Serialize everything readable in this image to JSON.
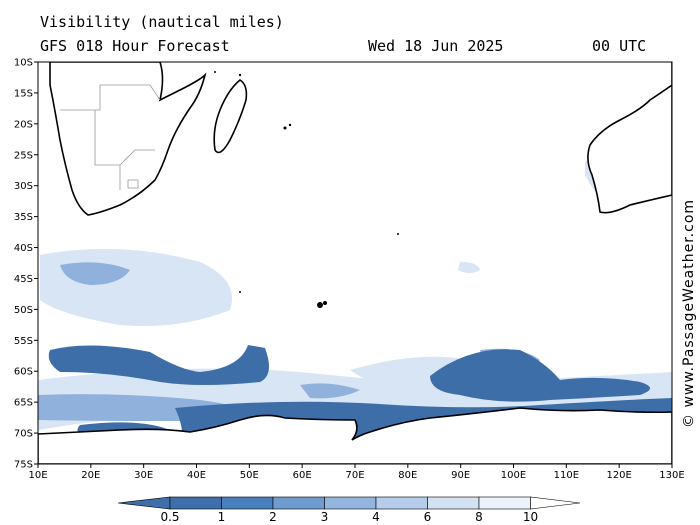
{
  "header": {
    "title": "Visibility (nautical miles)",
    "forecast": "GFS 018 Hour Forecast",
    "date": "Wed 18 Jun 2025",
    "time": "00 UTC"
  },
  "credit": "© www.PassageWeather.com",
  "axes": {
    "lat_labels": [
      "10S",
      "15S",
      "20S",
      "25S",
      "30S",
      "35S",
      "40S",
      "45S",
      "50S",
      "55S",
      "60S",
      "65S",
      "70S",
      "75S"
    ],
    "lon_labels": [
      "10E",
      "20E",
      "30E",
      "40E",
      "50E",
      "60E",
      "70E",
      "80E",
      "90E",
      "100E",
      "110E",
      "120E",
      "130E"
    ]
  },
  "colorbar": {
    "labels": [
      "0.5",
      "1",
      "2",
      "3",
      "4",
      "6",
      "8",
      "10"
    ],
    "colors": [
      "#3f6faa",
      "#4a7fbd",
      "#6f9bd0",
      "#93b5de",
      "#b5cceb",
      "#d3e1f3",
      "#ecf2fa",
      "#ffffff"
    ]
  },
  "colors": {
    "fog_dense": "#3e6ea8",
    "fog_mid": "#6f9bd0",
    "fog_light": "#b9cfec",
    "land_border": "#000000"
  }
}
